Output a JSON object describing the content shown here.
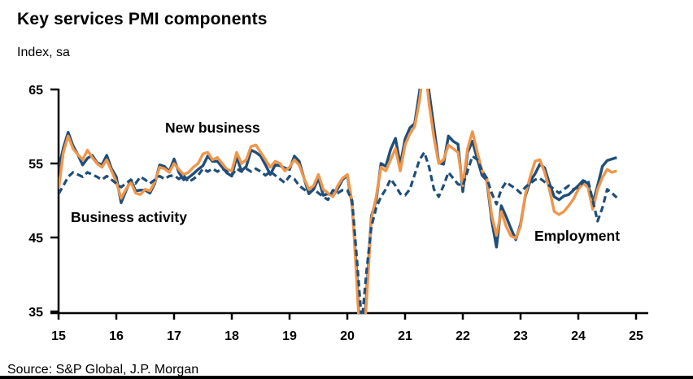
{
  "title": "Key services PMI components",
  "subtitle": "Index, sa",
  "source": "Source: S&P Global, J.P. Morgan",
  "colors": {
    "new_business": "#F0964A",
    "business_activity": "#1F4E79",
    "employment": "#1F4E79",
    "axis": "#000000",
    "background": "#FFFFFF"
  },
  "chart_data": {
    "type": "line",
    "title": "Key services PMI components",
    "ylabel": "Index, sa",
    "x_unit": "year (monthly points, Jan 2015 - Sep 2024)",
    "xlim": [
      15,
      25
    ],
    "ylim": [
      35,
      65
    ],
    "x_ticks": [
      "15",
      "16",
      "17",
      "18",
      "19",
      "20",
      "21",
      "22",
      "23",
      "24",
      "25"
    ],
    "y_ticks": [
      65,
      55,
      45,
      35
    ],
    "grid": false,
    "legend_position": "inline-annotations",
    "clipped_at_axes": true,
    "series": [
      {
        "name": "Business activity",
        "style": "solid",
        "color_key": "business_activity",
        "values": [
          54.2,
          57.1,
          59.2,
          57.4,
          56.2,
          54.8,
          55.7,
          56.1,
          55.1,
          54.8,
          56.1,
          54.3,
          53.2,
          49.7,
          51.3,
          52.8,
          51.3,
          51.4,
          51.4,
          51.0,
          52.3,
          54.8,
          54.6,
          53.9,
          55.6,
          53.8,
          52.8,
          53.1,
          53.6,
          54.2,
          54.7,
          56.0,
          55.3,
          55.3,
          54.5,
          53.7,
          53.3,
          55.9,
          54.0,
          54.6,
          56.8,
          56.5,
          56.0,
          54.8,
          53.5,
          54.8,
          54.7,
          54.4,
          54.2,
          56.0,
          55.3,
          53.0,
          50.9,
          51.5,
          53.0,
          50.7,
          50.9,
          50.6,
          51.6,
          52.8,
          53.4,
          49.4,
          39.8,
          26.7,
          37.5,
          47.9,
          50.0,
          55.0,
          54.6,
          56.9,
          58.4,
          54.8,
          58.3,
          59.8,
          60.4,
          64.7,
          70.4,
          64.6,
          59.9,
          55.1,
          54.9,
          58.7,
          58.0,
          57.6,
          51.2,
          56.5,
          58.0,
          55.6,
          53.4,
          52.7,
          47.3,
          43.7,
          49.3,
          47.8,
          46.2,
          44.7,
          46.8,
          50.6,
          52.6,
          53.6,
          54.9,
          54.4,
          52.3,
          50.5,
          50.1,
          50.6,
          50.8,
          51.4,
          52.0,
          52.7,
          52.3,
          49.6,
          52.0,
          54.6,
          55.4,
          55.6,
          55.8
        ]
      },
      {
        "name": "New business",
        "style": "solid",
        "color_key": "new_business",
        "values": [
          51.5,
          56.5,
          58.7,
          57.0,
          56.2,
          55.5,
          56.8,
          55.8,
          55.0,
          54.5,
          55.5,
          54.0,
          52.5,
          50.3,
          51.5,
          52.5,
          51.0,
          50.8,
          51.5,
          51.3,
          52.5,
          54.5,
          54.3,
          53.8,
          55.0,
          54.2,
          53.5,
          53.8,
          54.5,
          55.0,
          56.3,
          56.5,
          55.5,
          55.8,
          55.0,
          54.2,
          54.0,
          56.5,
          55.0,
          55.5,
          57.3,
          57.5,
          56.5,
          55.5,
          54.5,
          55.3,
          55.0,
          54.0,
          54.5,
          55.5,
          54.8,
          53.0,
          51.5,
          52.0,
          53.5,
          51.5,
          51.0,
          50.5,
          52.0,
          53.0,
          53.5,
          49.8,
          38.5,
          27.0,
          36.5,
          47.5,
          50.5,
          54.5,
          54.0,
          55.5,
          57.0,
          54.0,
          57.5,
          59.0,
          60.0,
          63.5,
          69.0,
          63.0,
          58.5,
          55.0,
          55.5,
          57.5,
          57.0,
          56.5,
          52.0,
          57.0,
          59.3,
          56.5,
          54.0,
          53.0,
          48.0,
          45.3,
          48.5,
          46.5,
          45.2,
          44.9,
          46.5,
          50.8,
          53.2,
          55.3,
          55.5,
          53.8,
          51.5,
          48.5,
          48.1,
          48.5,
          49.3,
          50.2,
          51.5,
          52.3,
          51.8,
          48.8,
          51.5,
          53.1,
          54.2,
          53.8,
          54.0
        ]
      },
      {
        "name": "Employment",
        "style": "dashed",
        "color_key": "employment",
        "values": [
          50.9,
          52.0,
          53.2,
          53.8,
          53.5,
          53.2,
          53.8,
          53.5,
          53.2,
          52.8,
          53.3,
          52.8,
          52.3,
          51.8,
          52.3,
          52.8,
          52.3,
          53.2,
          52.8,
          52.3,
          52.8,
          53.3,
          52.9,
          53.3,
          53.4,
          52.9,
          53.4,
          52.5,
          52.9,
          53.4,
          54.3,
          53.9,
          54.3,
          53.9,
          54.3,
          53.9,
          53.4,
          54.3,
          53.9,
          54.3,
          53.9,
          54.3,
          53.9,
          53.4,
          53.9,
          53.4,
          52.9,
          52.4,
          53.3,
          52.9,
          52.0,
          51.5,
          51.0,
          51.5,
          51.0,
          50.5,
          50.1,
          51.4,
          51.0,
          51.4,
          51.4,
          50.0,
          42.0,
          33.5,
          40.5,
          46.5,
          49.0,
          50.5,
          51.5,
          52.9,
          52.0,
          50.9,
          50.7,
          51.5,
          53.5,
          55.5,
          56.5,
          54.5,
          51.5,
          50.5,
          52.0,
          53.8,
          53.0,
          52.2,
          52.0,
          54.0,
          56.0,
          55.5,
          54.0,
          53.0,
          51.0,
          49.5,
          51.5,
          52.5,
          52.0,
          51.6,
          51.0,
          51.8,
          52.3,
          52.8,
          53.0,
          52.5,
          52.0,
          51.5,
          51.0,
          51.5,
          52.0,
          51.5,
          51.8,
          52.5,
          52.8,
          50.0,
          47.2,
          49.0,
          51.5,
          51.0,
          50.4
        ]
      }
    ]
  }
}
